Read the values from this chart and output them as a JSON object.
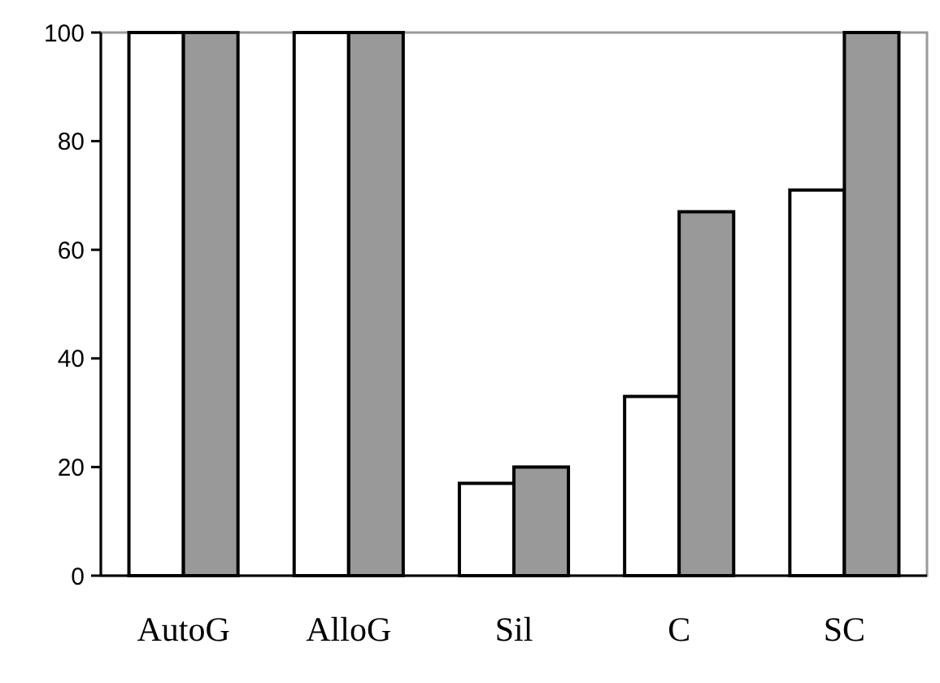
{
  "chart_data": {
    "type": "bar",
    "categories": [
      "AutoG",
      "AlloG",
      "Sil",
      "C",
      "SC"
    ],
    "series": [
      {
        "color": "#ffffff",
        "values": [
          100,
          100,
          17,
          33,
          71
        ]
      },
      {
        "color": "#999999",
        "values": [
          100,
          100,
          20,
          67,
          100
        ]
      }
    ],
    "ylim": [
      0,
      100
    ],
    "yticks": [
      0,
      20,
      40,
      60,
      80,
      100
    ],
    "grid": false
  }
}
